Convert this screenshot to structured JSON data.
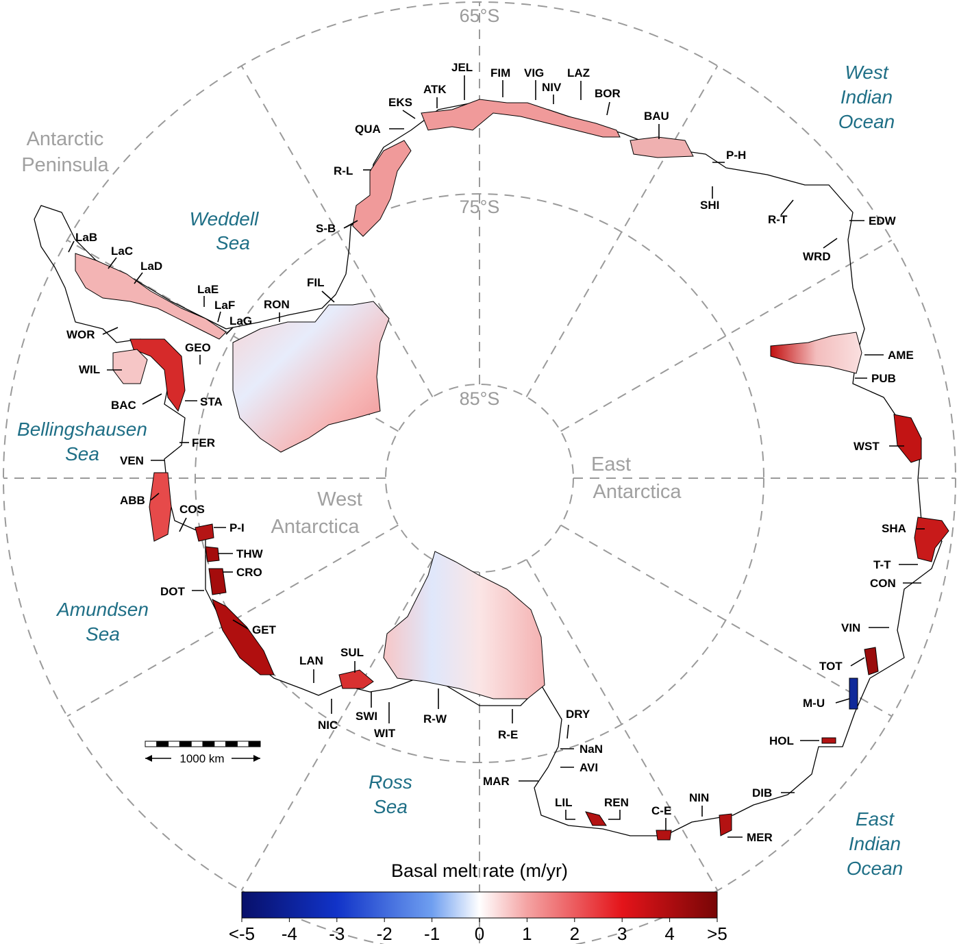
{
  "latitude_labels": [
    "65°S",
    "75°S",
    "85°S"
  ],
  "regions": [
    {
      "key": "antarctic-peninsula",
      "lines": [
        "Antarctic",
        "Peninsula"
      ]
    },
    {
      "key": "west-antarctica",
      "lines": [
        "West",
        "Antarctica"
      ]
    },
    {
      "key": "east-antarctica",
      "lines": [
        "East",
        "Antarctica"
      ]
    }
  ],
  "seas": [
    {
      "key": "weddell-sea",
      "lines": [
        "Weddell",
        "Sea"
      ]
    },
    {
      "key": "bellingshausen-sea",
      "lines": [
        "Bellingshausen",
        "Sea"
      ]
    },
    {
      "key": "amundsen-sea",
      "lines": [
        "Amundsen",
        "Sea"
      ]
    },
    {
      "key": "ross-sea",
      "lines": [
        "Ross",
        "Sea"
      ]
    },
    {
      "key": "west-indian-ocean",
      "lines": [
        "West",
        "Indian",
        "Ocean"
      ]
    },
    {
      "key": "east-indian-ocean",
      "lines": [
        "East",
        "Indian",
        "Ocean"
      ]
    }
  ],
  "ice_shelves": [
    {
      "label": "LaB"
    },
    {
      "label": "LaC"
    },
    {
      "label": "LaD"
    },
    {
      "label": "LaE"
    },
    {
      "label": "LaF"
    },
    {
      "label": "LaG"
    },
    {
      "label": "WOR"
    },
    {
      "label": "GEO"
    },
    {
      "label": "WIL"
    },
    {
      "label": "BAC"
    },
    {
      "label": "STA"
    },
    {
      "label": "FER"
    },
    {
      "label": "VEN"
    },
    {
      "label": "ABB"
    },
    {
      "label": "COS"
    },
    {
      "label": "P-I"
    },
    {
      "label": "THW"
    },
    {
      "label": "CRO"
    },
    {
      "label": "DOT"
    },
    {
      "label": "GET"
    },
    {
      "label": "LAN"
    },
    {
      "label": "SUL"
    },
    {
      "label": "NIC"
    },
    {
      "label": "SWI"
    },
    {
      "label": "WIT"
    },
    {
      "label": "R-W"
    },
    {
      "label": "R-E"
    },
    {
      "label": "DRY"
    },
    {
      "label": "NaN"
    },
    {
      "label": "AVI"
    },
    {
      "label": "MAR"
    },
    {
      "label": "LIL"
    },
    {
      "label": "REN"
    },
    {
      "label": "C-E"
    },
    {
      "label": "NIN"
    },
    {
      "label": "MER"
    },
    {
      "label": "DIB"
    },
    {
      "label": "HOL"
    },
    {
      "label": "M-U"
    },
    {
      "label": "TOT"
    },
    {
      "label": "VIN"
    },
    {
      "label": "CON"
    },
    {
      "label": "T-T"
    },
    {
      "label": "SHA"
    },
    {
      "label": "WST"
    },
    {
      "label": "PUB"
    },
    {
      "label": "AME"
    },
    {
      "label": "WRD"
    },
    {
      "label": "EDW"
    },
    {
      "label": "R-T"
    },
    {
      "label": "SHI"
    },
    {
      "label": "P-H"
    },
    {
      "label": "BAU"
    },
    {
      "label": "BOR"
    },
    {
      "label": "LAZ"
    },
    {
      "label": "NIV"
    },
    {
      "label": "VIG"
    },
    {
      "label": "FIM"
    },
    {
      "label": "JEL"
    },
    {
      "label": "ATK"
    },
    {
      "label": "EKS"
    },
    {
      "label": "QUA"
    },
    {
      "label": "R-L"
    },
    {
      "label": "S-B"
    },
    {
      "label": "FIL"
    },
    {
      "label": "RON"
    }
  ],
  "scale_bar": {
    "label": "1000 km"
  },
  "colorbar": {
    "title": "Basal melt rate (m/yr)",
    "ticks": [
      "<-5",
      "-4",
      "-3",
      "-2",
      "-1",
      "0",
      "1",
      "2",
      "3",
      "4",
      ">5"
    ],
    "min": -5,
    "max": 5,
    "colors": {
      "strong_freeze": "#08146e",
      "freeze": "#1f5fe0",
      "neutral": "#ffffff",
      "melt": "#e8141a",
      "strong_melt": "#7a0a0a"
    }
  }
}
